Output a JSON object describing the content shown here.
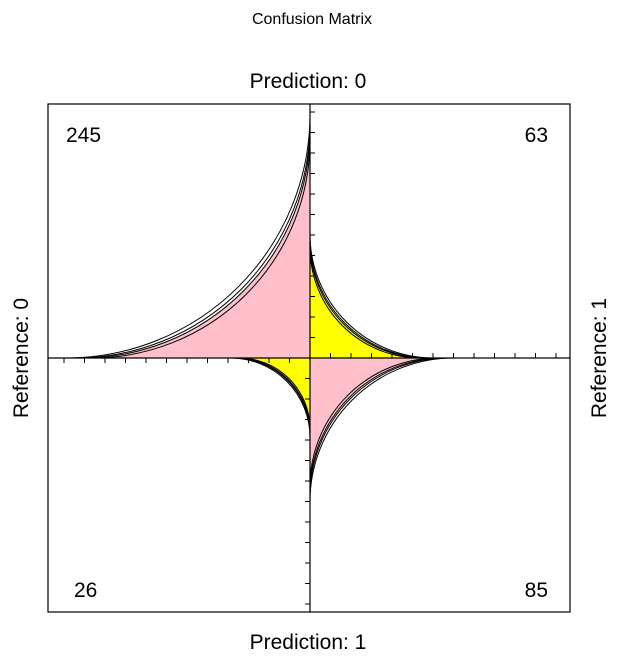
{
  "chart_data": {
    "type": "fourfold",
    "title": "Confusion Matrix",
    "row_labels": [
      "Prediction: 0",
      "Prediction: 1"
    ],
    "col_labels": [
      "Reference: 0",
      "Reference: 1"
    ],
    "cells": [
      {
        "prediction": "0",
        "reference": "0",
        "count": "245",
        "color": "#ffc0cb"
      },
      {
        "prediction": "0",
        "reference": "1",
        "count": "63",
        "color": "#ffff00"
      },
      {
        "prediction": "1",
        "reference": "0",
        "count": "26",
        "color": "#ffff00"
      },
      {
        "prediction": "1",
        "reference": "1",
        "count": "85",
        "color": "#ffc0cb"
      }
    ],
    "correct_color": "#ffc0cb",
    "error_color": "#ffff00"
  }
}
